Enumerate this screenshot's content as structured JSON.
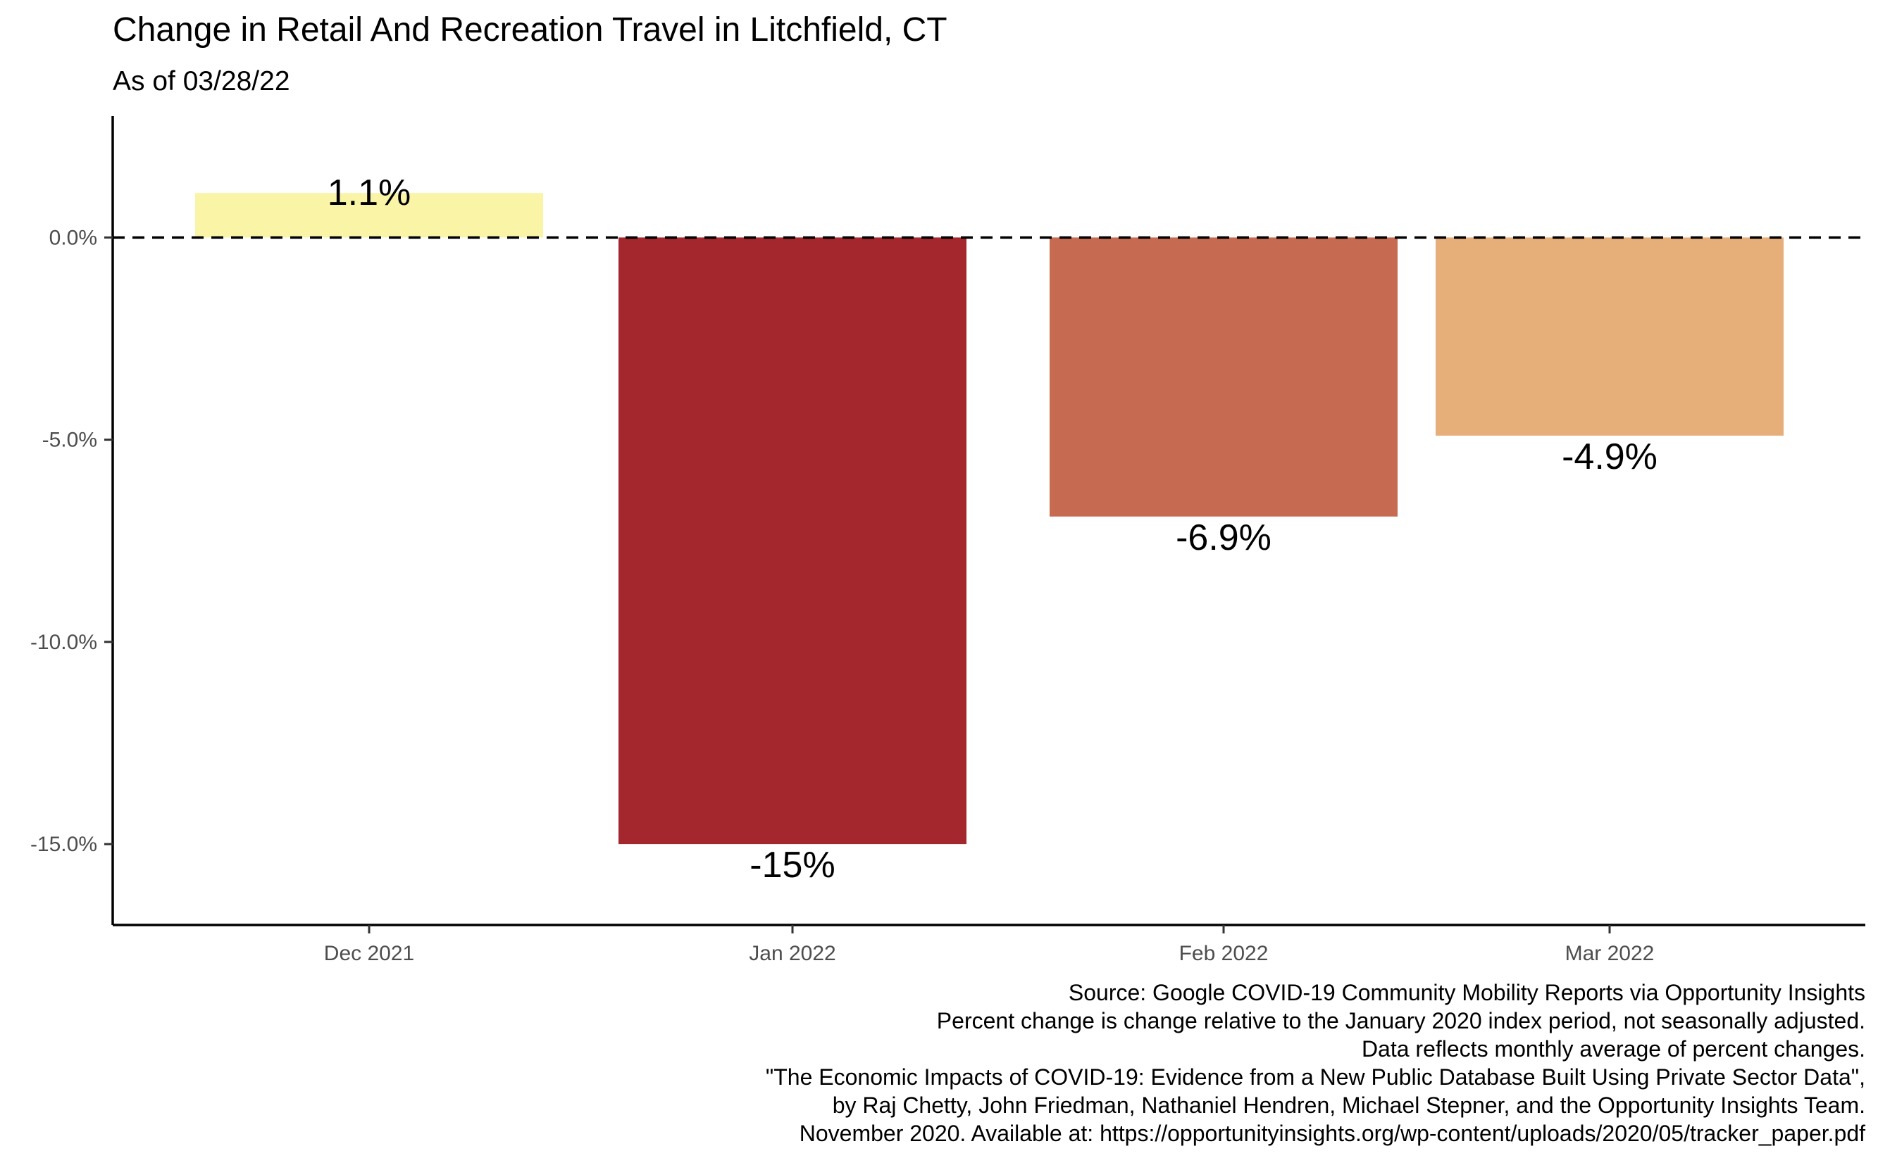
{
  "chart_data": {
    "type": "bar",
    "title": "Change in Retail And Recreation Travel in Litchfield, CT",
    "subtitle": "As of 03/28/22",
    "categories": [
      "Dec 2021",
      "Jan 2022",
      "Feb 2022",
      "Mar 2022"
    ],
    "values": [
      1.1,
      -15.0,
      -6.9,
      -4.9
    ],
    "data_labels": [
      "1.1%",
      "-15%",
      "-6.9%",
      "-4.9%"
    ],
    "colors": [
      "#FAF4A6",
      "#A4272D",
      "#C66A51",
      "#E6AF7A"
    ],
    "ylim": [
      -17,
      3
    ],
    "yticks": [
      0,
      -5,
      -10,
      -15
    ],
    "ytick_labels": [
      "0.0%",
      "-5.0%",
      "-10.0%",
      "-15.0%"
    ],
    "reference_line": {
      "y": 0,
      "style": "dashed"
    },
    "xlabel": "",
    "ylabel": "",
    "grid": false,
    "legend": "none",
    "caption": [
      "Source: Google COVID-19 Community Mobility Reports via Opportunity Insights",
      "Percent change is change relative to the January 2020 index period, not seasonally adjusted.",
      "Data reflects monthly average of percent changes.",
      "\"The Economic Impacts of COVID-19: Evidence from a New Public Database Built Using Private Sector Data\",",
      "by Raj Chetty, John Friedman, Nathaniel Hendren, Michael Stepner, and the Opportunity Insights Team.",
      "November 2020. Available at: https://opportunityinsights.org/wp-content/uploads/2020/05/tracker_paper.pdf"
    ]
  }
}
